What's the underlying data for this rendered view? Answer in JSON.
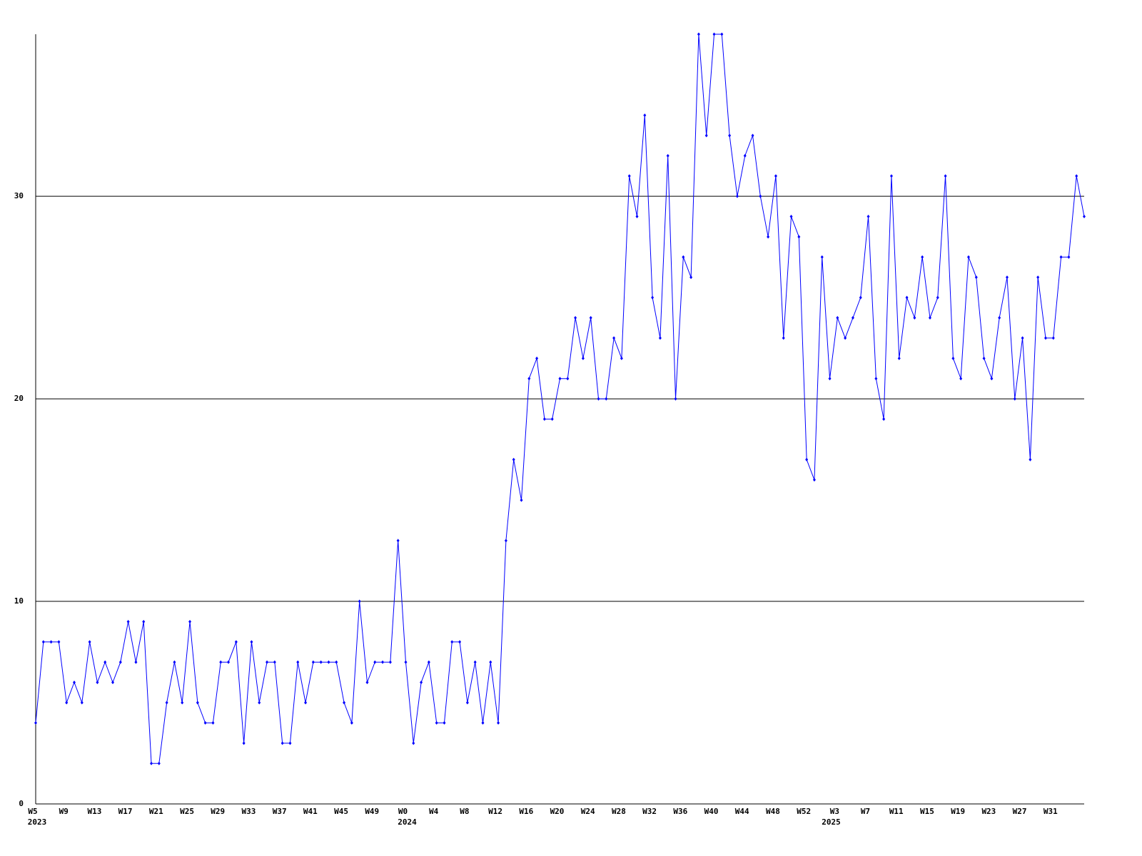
{
  "chart_data": {
    "type": "line",
    "color": "#0000ff",
    "ylim": [
      0,
      38
    ],
    "yticks": [
      0,
      10,
      20,
      30
    ],
    "grid": true,
    "categories": [
      "W5",
      null,
      null,
      null,
      "W9",
      null,
      null,
      null,
      "W13",
      null,
      null,
      null,
      "W17",
      null,
      null,
      null,
      "W21",
      null,
      null,
      null,
      "W25",
      null,
      null,
      null,
      "W29",
      null,
      null,
      null,
      "W33",
      null,
      null,
      null,
      "W37",
      null,
      null,
      null,
      "W41",
      null,
      null,
      null,
      "W45",
      null,
      null,
      null,
      "W49",
      null,
      null,
      null,
      "W0",
      null,
      null,
      null,
      "W4",
      null,
      null,
      null,
      "W8",
      null,
      null,
      null,
      "W12",
      null,
      null,
      null,
      "W16",
      null,
      null,
      null,
      "W20",
      null,
      null,
      null,
      "W24",
      null,
      null,
      null,
      "W28",
      null,
      null,
      null,
      "W32",
      null,
      null,
      null,
      "W36",
      null,
      null,
      null,
      "W40",
      null,
      null,
      null,
      "W44",
      null,
      null,
      null,
      "W48",
      null,
      null,
      null,
      "W52",
      null,
      null,
      null,
      "W3",
      null,
      null,
      null,
      "W7",
      null,
      null,
      null,
      "W11",
      null,
      null,
      null,
      "W15",
      null,
      null,
      null,
      "W19",
      null,
      null,
      null,
      "W23",
      null,
      null,
      null,
      "W27",
      null,
      null,
      null,
      "W31",
      null,
      null,
      null,
      null
    ],
    "year_categories": [
      "2023",
      null,
      null,
      null,
      null,
      null,
      null,
      null,
      null,
      null,
      null,
      null,
      null,
      null,
      null,
      null,
      null,
      null,
      null,
      null,
      null,
      null,
      null,
      null,
      null,
      null,
      null,
      null,
      null,
      null,
      null,
      null,
      null,
      null,
      null,
      null,
      null,
      null,
      null,
      null,
      null,
      null,
      null,
      null,
      null,
      null,
      null,
      null,
      "2024",
      null,
      null,
      null,
      null,
      null,
      null,
      null,
      null,
      null,
      null,
      null,
      null,
      null,
      null,
      null,
      null,
      null,
      null,
      null,
      null,
      null,
      null,
      null,
      null,
      null,
      null,
      null,
      null,
      null,
      null,
      null,
      null,
      null,
      null,
      null,
      null,
      null,
      null,
      null,
      null,
      null,
      null,
      null,
      null,
      null,
      null,
      null,
      null,
      null,
      null,
      null,
      null,
      null,
      null,
      "2025",
      null,
      null,
      null,
      null,
      null,
      null,
      null,
      null,
      null,
      null,
      null,
      null,
      null,
      null,
      null,
      null,
      null,
      null,
      null,
      null,
      null,
      null,
      null,
      null,
      null,
      null,
      null,
      null,
      null,
      null,
      null,
      null,
      null,
      null
    ],
    "values": [
      4,
      8,
      8,
      8,
      5,
      6,
      5,
      8,
      6,
      7,
      6,
      7,
      9,
      7,
      9,
      2,
      2,
      5,
      7,
      5,
      9,
      5,
      4,
      4,
      7,
      7,
      8,
      3,
      8,
      5,
      7,
      7,
      3,
      3,
      7,
      5,
      7,
      7,
      7,
      7,
      5,
      4,
      10,
      6,
      7,
      7,
      7,
      13,
      7,
      3,
      6,
      7,
      4,
      4,
      8,
      8,
      5,
      7,
      4,
      7,
      4,
      13,
      17,
      15,
      21,
      22,
      19,
      19,
      21,
      21,
      24,
      22,
      24,
      20,
      20,
      23,
      22,
      31,
      29,
      34,
      25,
      23,
      32,
      20,
      27,
      26,
      38,
      33,
      38,
      38,
      33,
      30,
      32,
      33,
      30,
      28,
      31,
      23,
      29,
      28,
      17,
      16,
      27,
      21,
      24,
      23,
      24,
      25,
      29,
      21,
      19,
      31,
      22,
      25,
      24,
      27,
      24,
      25,
      31,
      22,
      21,
      27,
      26,
      22,
      21,
      24,
      26,
      20,
      23,
      17,
      26,
      23,
      23,
      27,
      27,
      31,
      29
    ]
  }
}
